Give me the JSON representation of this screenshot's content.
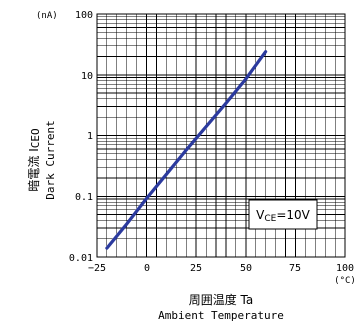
{
  "chart_data": {
    "type": "line",
    "scale_y": "log",
    "grid": true,
    "x": [
      -20,
      -10,
      0,
      10,
      20,
      25,
      30,
      40,
      50,
      60
    ],
    "series": [
      {
        "values": [
          0.014,
          0.035,
          0.092,
          0.23,
          0.58,
          0.9,
          1.4,
          3.4,
          8.5,
          24
        ],
        "color": "#2b3a9e"
      }
    ],
    "xlim": [
      -25,
      100
    ],
    "ylim": [
      0.01,
      100
    ],
    "x_ticks": [
      "−25",
      "0",
      "25",
      "50",
      "75",
      "100"
    ],
    "y_ticks": [
      "0.01",
      "0.1",
      "1",
      "10",
      "100"
    ],
    "y_unit": "(nA)",
    "x_unit": "(°C)",
    "ylabel_jp": "暗電流 I",
    "ylabel_sub": "CEO",
    "ylabel_en": "Dark Current",
    "xlabel_jp": "周囲温度 Ta",
    "xlabel_en": "Ambient Temperature",
    "annotation": {
      "prefix": "V",
      "sub": "CE",
      "suffix": "=10V"
    }
  }
}
